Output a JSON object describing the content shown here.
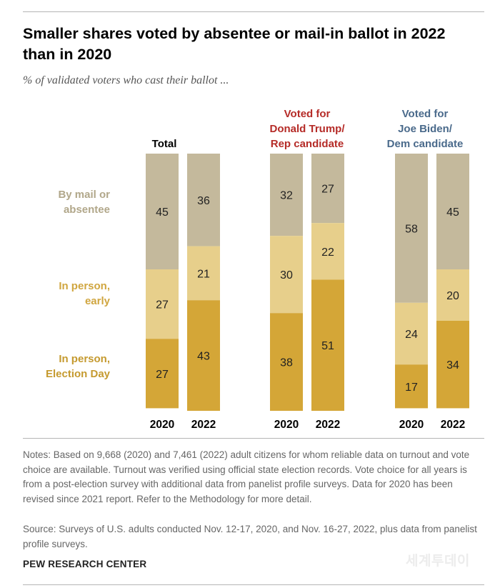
{
  "title": "Smaller shares voted by absentee or mail-in ballot in 2022 than in 2020",
  "subtitle": "% of validated voters who cast their ballot ...",
  "row_labels": [
    "By mail or\nabsentee",
    "In person,\nearly",
    "In person,\nElection Day"
  ],
  "notes": "Notes: Based on 9,668 (2020) and 7,461 (2022) adult citizens for whom reliable data on turnout and vote choice are available. Turnout was verified using official state election records. Vote choice for all years is from a post-election survey with additional data from panelist profile surveys. Data for 2020 has been revised since 2021 report. Refer to the Methodology for more detail.",
  "source": "Source: Surveys of U.S. adults conducted Nov. 12-17, 2020, and Nov. 16-27, 2022, plus data from panelist profile surveys.",
  "organization": "PEW RESEARCH CENTER",
  "watermark": "세계투데이",
  "colors": {
    "mail": "#c4b99c",
    "early": "#e7cf8b",
    "election_day": "#d4a637",
    "trump_title": "#b52b27",
    "biden_title": "#4a6a8b",
    "label_mail": "#b1a78a",
    "label_early": "#d0a640",
    "label_election_day": "#c59a2f"
  },
  "chart_data": {
    "type": "bar",
    "stacked": true,
    "normalized_to": 100,
    "series_names": [
      "By mail or absentee",
      "In person, early",
      "In person, Election Day"
    ],
    "groups": [
      {
        "title": "Total",
        "categories": [
          "2020",
          "2022"
        ],
        "series": [
          {
            "name": "By mail or absentee",
            "values": [
              45,
              36
            ]
          },
          {
            "name": "In person, early",
            "values": [
              27,
              21
            ]
          },
          {
            "name": "In person, Election Day",
            "values": [
              27,
              43
            ]
          }
        ]
      },
      {
        "title": "Voted for\nDonald Trump/\nRep candidate",
        "categories": [
          "2020",
          "2022"
        ],
        "series": [
          {
            "name": "By mail or absentee",
            "values": [
              32,
              27
            ]
          },
          {
            "name": "In person, early",
            "values": [
              30,
              22
            ]
          },
          {
            "name": "In person, Election Day",
            "values": [
              38,
              51
            ]
          }
        ]
      },
      {
        "title": "Voted for\nJoe Biden/\nDem candidate",
        "categories": [
          "2020",
          "2022"
        ],
        "series": [
          {
            "name": "By mail or absentee",
            "values": [
              58,
              45
            ]
          },
          {
            "name": "In person, early",
            "values": [
              24,
              20
            ]
          },
          {
            "name": "In person, Election Day",
            "values": [
              17,
              34
            ]
          }
        ]
      }
    ]
  }
}
